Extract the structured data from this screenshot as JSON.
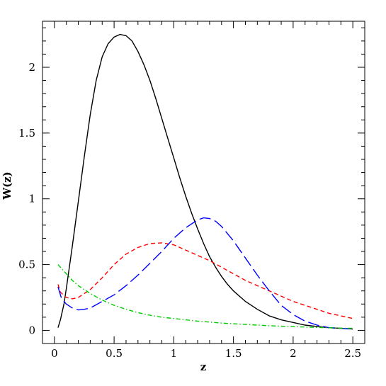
{
  "chart_data": {
    "type": "line",
    "title": "",
    "xlabel": "z",
    "ylabel": "W(z)",
    "xlim": [
      -0.1,
      2.6
    ],
    "ylim": [
      -0.1,
      2.35
    ],
    "grid": false,
    "legend": "none",
    "x_major_ticks": [
      0,
      0.5,
      1,
      1.5,
      2,
      2.5
    ],
    "x_tick_labels": [
      "0",
      "0.5",
      "1",
      "1.5",
      "2",
      "2.5"
    ],
    "y_major_ticks": [
      0,
      0.5,
      1,
      1.5,
      2
    ],
    "y_tick_labels": [
      "0",
      "0.5",
      "1",
      "1.5",
      "2"
    ],
    "x_minor_step": 0.1,
    "y_minor_step": 0.1,
    "series": [
      {
        "color": "#000000",
        "dash": "",
        "x": [
          0.03,
          0.05,
          0.08,
          0.1,
          0.15,
          0.2,
          0.25,
          0.3,
          0.35,
          0.4,
          0.45,
          0.5,
          0.55,
          0.6,
          0.65,
          0.7,
          0.75,
          0.8,
          0.85,
          0.9,
          0.95,
          1.0,
          1.05,
          1.1,
          1.15,
          1.2,
          1.25,
          1.3,
          1.35,
          1.4,
          1.45,
          1.5,
          1.6,
          1.7,
          1.8,
          1.9,
          2.0,
          2.1,
          2.2,
          2.3,
          2.4,
          2.5
        ],
        "values": [
          0.02,
          0.08,
          0.2,
          0.32,
          0.64,
          0.98,
          1.32,
          1.64,
          1.9,
          2.08,
          2.18,
          2.23,
          2.25,
          2.24,
          2.2,
          2.12,
          2.02,
          1.9,
          1.76,
          1.61,
          1.46,
          1.31,
          1.16,
          1.02,
          0.89,
          0.77,
          0.66,
          0.56,
          0.48,
          0.41,
          0.35,
          0.3,
          0.22,
          0.16,
          0.11,
          0.08,
          0.06,
          0.04,
          0.03,
          0.02,
          0.015,
          0.01
        ]
      },
      {
        "color": "#ff0000",
        "dash": "6,4",
        "x": [
          0.03,
          0.05,
          0.1,
          0.15,
          0.2,
          0.3,
          0.4,
          0.5,
          0.6,
          0.7,
          0.8,
          0.9,
          1.0,
          1.1,
          1.2,
          1.3,
          1.4,
          1.5,
          1.6,
          1.7,
          1.8,
          1.9,
          2.0,
          2.1,
          2.2,
          2.3,
          2.4,
          2.5
        ],
        "values": [
          0.35,
          0.29,
          0.25,
          0.24,
          0.25,
          0.31,
          0.4,
          0.5,
          0.58,
          0.63,
          0.66,
          0.665,
          0.65,
          0.61,
          0.57,
          0.53,
          0.48,
          0.43,
          0.38,
          0.34,
          0.3,
          0.26,
          0.22,
          0.19,
          0.16,
          0.13,
          0.11,
          0.09
        ]
      },
      {
        "color": "#0000ff",
        "dash": "16,6",
        "x": [
          0.03,
          0.06,
          0.1,
          0.15,
          0.2,
          0.25,
          0.3,
          0.4,
          0.5,
          0.6,
          0.7,
          0.8,
          0.9,
          1.0,
          1.1,
          1.2,
          1.25,
          1.3,
          1.35,
          1.4,
          1.5,
          1.6,
          1.7,
          1.8,
          1.9,
          2.0,
          2.1,
          2.2,
          2.3,
          2.4,
          2.5
        ],
        "values": [
          0.33,
          0.24,
          0.2,
          0.17,
          0.155,
          0.16,
          0.17,
          0.22,
          0.27,
          0.34,
          0.42,
          0.51,
          0.6,
          0.7,
          0.78,
          0.84,
          0.855,
          0.85,
          0.83,
          0.79,
          0.68,
          0.55,
          0.42,
          0.3,
          0.19,
          0.12,
          0.07,
          0.04,
          0.02,
          0.015,
          0.01
        ]
      },
      {
        "color": "#00cc00",
        "dash": "6,3,1.5,3",
        "x": [
          0.03,
          0.05,
          0.1,
          0.15,
          0.2,
          0.3,
          0.4,
          0.5,
          0.6,
          0.7,
          0.8,
          0.9,
          1.0,
          1.2,
          1.4,
          1.6,
          1.8,
          2.0,
          2.2,
          2.4,
          2.5
        ],
        "values": [
          0.5,
          0.48,
          0.43,
          0.38,
          0.34,
          0.28,
          0.23,
          0.19,
          0.16,
          0.135,
          0.115,
          0.1,
          0.09,
          0.07,
          0.055,
          0.045,
          0.035,
          0.028,
          0.022,
          0.017,
          0.015
        ]
      }
    ]
  }
}
